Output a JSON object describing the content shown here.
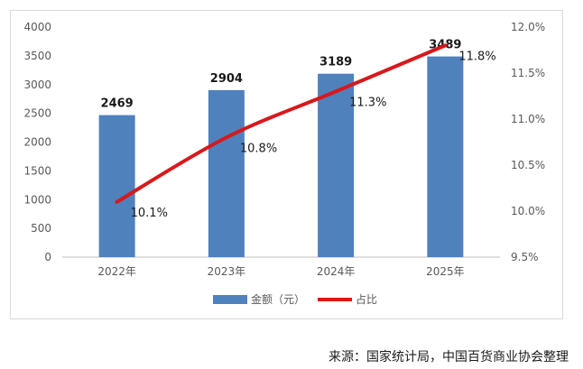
{
  "chart_data": {
    "type": "bar+line",
    "categories": [
      "2022年",
      "2023年",
      "2024年",
      "2025年"
    ],
    "series": [
      {
        "name": "金额（元）",
        "type": "bar",
        "axis": "left",
        "values": [
          2469,
          2904,
          3189,
          3489
        ],
        "labels": [
          "2469",
          "2904",
          "3189",
          "3489"
        ],
        "color": "#4f81bd"
      },
      {
        "name": "占比",
        "type": "line",
        "axis": "right",
        "values": [
          10.1,
          10.8,
          11.3,
          11.8
        ],
        "labels": [
          "10.1%",
          "10.8%",
          "11.3%",
          "11.8%"
        ],
        "color": "#d7191c"
      }
    ],
    "y_left": {
      "min": 0,
      "max": 4000,
      "ticks": [
        "0",
        "500",
        "1000",
        "1500",
        "2000",
        "2500",
        "3000",
        "3500",
        "4000"
      ]
    },
    "y_right": {
      "min": 9.5,
      "max": 12.0,
      "ticks": [
        "9.5%",
        "10.0%",
        "10.5%",
        "11.0%",
        "11.5%",
        "12.0%"
      ]
    },
    "grid": false,
    "legend_position": "bottom"
  },
  "source_note": "来源：国家统计局，中国百货商业协会整理"
}
